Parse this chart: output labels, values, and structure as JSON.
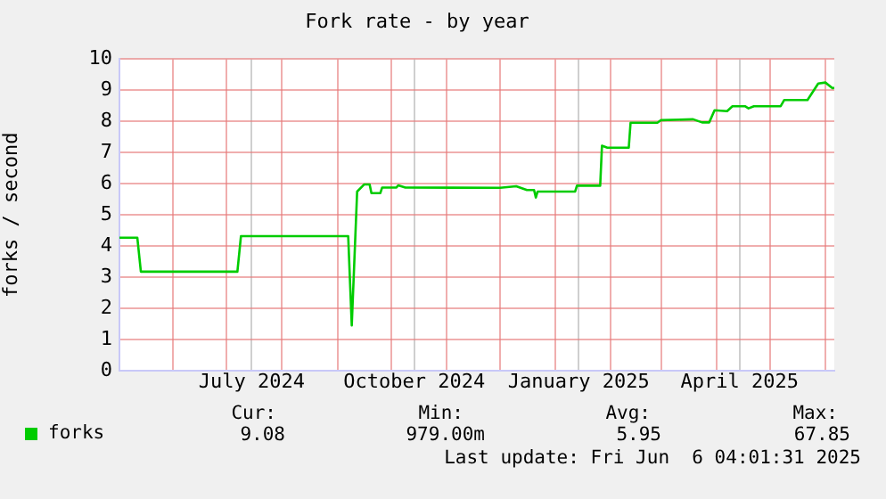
{
  "chart_data": {
    "type": "line",
    "title": "Fork rate - by year",
    "ylabel": "forks / second",
    "x": [
      "2024-05-02",
      "2024-05-12",
      "2024-05-14",
      "2024-07-07",
      "2024-07-09",
      "2024-09-07",
      "2024-09-09",
      "2024-09-12",
      "2024-09-16",
      "2024-09-19",
      "2024-09-20",
      "2024-09-25",
      "2024-09-26",
      "2024-10-04",
      "2024-10-05",
      "2024-10-09",
      "2024-12-01",
      "2024-12-10",
      "2024-12-16",
      "2024-12-20",
      "2024-12-21",
      "2024-12-22",
      "2025-01-12",
      "2025-01-13",
      "2025-01-26",
      "2025-01-27",
      "2025-01-30",
      "2025-02-11",
      "2025-02-12",
      "2025-02-27",
      "2025-03-01",
      "2025-03-19",
      "2025-03-24",
      "2025-03-28",
      "2025-03-31",
      "2025-04-07",
      "2025-04-10",
      "2025-04-17",
      "2025-04-19",
      "2025-04-22",
      "2025-05-07",
      "2025-05-09",
      "2025-05-22",
      "2025-05-28",
      "2025-06-01",
      "2025-06-05",
      "2025-06-06"
    ],
    "series": [
      {
        "name": "forks",
        "color": "#00cc00",
        "values": [
          4.27,
          4.27,
          3.18,
          3.18,
          4.32,
          4.32,
          1.45,
          5.75,
          5.98,
          5.98,
          5.7,
          5.7,
          5.88,
          5.88,
          5.95,
          5.88,
          5.87,
          5.92,
          5.8,
          5.8,
          5.56,
          5.75,
          5.75,
          5.94,
          5.94,
          7.22,
          7.16,
          7.16,
          7.96,
          7.96,
          8.04,
          8.07,
          7.97,
          7.97,
          8.36,
          8.33,
          8.49,
          8.49,
          8.42,
          8.49,
          8.49,
          8.69,
          8.69,
          9.22,
          9.25,
          9.07,
          9.08
        ]
      }
    ],
    "xlim": [
      "2024-05-02",
      "2025-06-06"
    ],
    "xticks": [
      {
        "value": "2024-06-01",
        "label": null
      },
      {
        "value": "2024-07-01",
        "label": null
      },
      {
        "value": "2024-07-15",
        "label": "July 2024"
      },
      {
        "value": "2024-08-01",
        "label": null
      },
      {
        "value": "2024-09-01",
        "label": null
      },
      {
        "value": "2024-10-01",
        "label": null
      },
      {
        "value": "2024-10-14",
        "label": "October 2024"
      },
      {
        "value": "2024-11-01",
        "label": null
      },
      {
        "value": "2024-12-01",
        "label": null
      },
      {
        "value": "2025-01-01",
        "label": null
      },
      {
        "value": "2025-01-14",
        "label": "January 2025"
      },
      {
        "value": "2025-02-01",
        "label": null
      },
      {
        "value": "2025-03-01",
        "label": null
      },
      {
        "value": "2025-04-01",
        "label": null
      },
      {
        "value": "2025-04-14",
        "label": "April 2025"
      },
      {
        "value": "2025-05-01",
        "label": null
      },
      {
        "value": "2025-06-01",
        "label": null
      }
    ],
    "ylim": [
      0,
      10
    ],
    "yticks": [
      0,
      1,
      2,
      3,
      4,
      5,
      6,
      7,
      8,
      9,
      10
    ],
    "grid": true,
    "legend": "bottom left",
    "marker": "none",
    "line_style": "solid",
    "annotations": [
      "Cur:",
      "Min:",
      "Avg:",
      "Max:",
      "9.08",
      "979.00m",
      "5.95",
      "67.85",
      "Last update: Fri Jun  6 04:01:31 2025"
    ]
  }
}
